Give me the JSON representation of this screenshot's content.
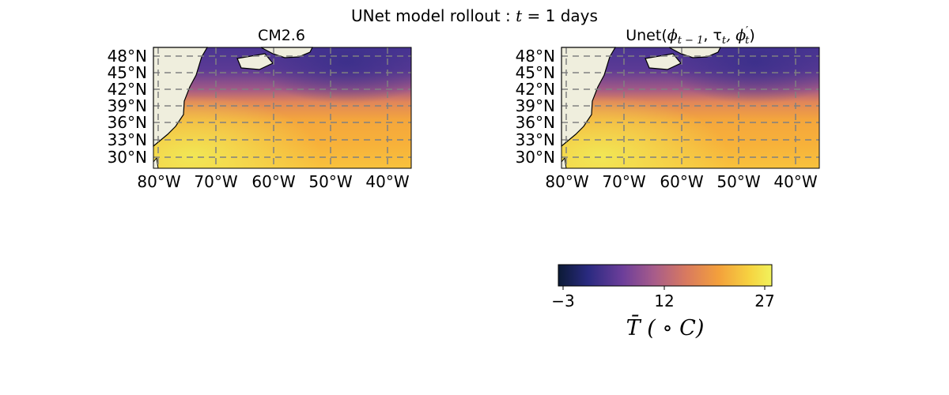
{
  "figure": {
    "title": "UNet model rollout : t = 1 days",
    "title_parts": {
      "prefix": "UNet model rollout : ",
      "var": "t",
      "suffix": " = 1 days"
    }
  },
  "panels": [
    {
      "title": "CM2.6",
      "lat_ticks": [
        "48°N",
        "45°N",
        "42°N",
        "39°N",
        "36°N",
        "33°N",
        "30°N"
      ],
      "lon_ticks": [
        "80°W",
        "70°W",
        "60°W",
        "50°W",
        "40°W"
      ],
      "extent": {
        "lon": [
          -82,
          -35
        ],
        "lat": [
          27.5,
          49.5
        ]
      },
      "field": "ocean-surface-temperature",
      "gridlines": "dashed gray"
    },
    {
      "title": "Unet(ϕt−1, τt, ϕ′t)",
      "title_parts": {
        "name": "Unet(",
        "a": "ϕ",
        "a_sub": "t − 1",
        "b": ", τ",
        "b_sub": "t",
        "c": ", ϕ",
        "c_sup": "′",
        "c_sub": "t",
        "close": ")"
      },
      "lat_ticks": [
        "48°N",
        "45°N",
        "42°N",
        "39°N",
        "36°N",
        "33°N",
        "30°N"
      ],
      "lon_ticks": [
        "80°W",
        "70°W",
        "60°W",
        "50°W",
        "40°W"
      ],
      "extent": {
        "lon": [
          -82,
          -35
        ],
        "lat": [
          27.5,
          49.5
        ]
      },
      "field": "ocean-surface-temperature",
      "gridlines": "dashed gray"
    }
  ],
  "colorbar": {
    "label": "T̄ (°C)",
    "label_parts": {
      "var": "T̄",
      "unit": " ( ∘ C)"
    },
    "range": [
      -3,
      27
    ],
    "ticks": [
      "−3",
      "12",
      "27"
    ],
    "colormap": [
      "#0b1a35",
      "#2a2a80",
      "#6c3e9a",
      "#a85c8a",
      "#d97a5f",
      "#f3a03c",
      "#f6d441",
      "#f1f25c"
    ]
  },
  "colors": {
    "land": "#efeedd",
    "coast": "#000000",
    "grid": "#808080"
  }
}
